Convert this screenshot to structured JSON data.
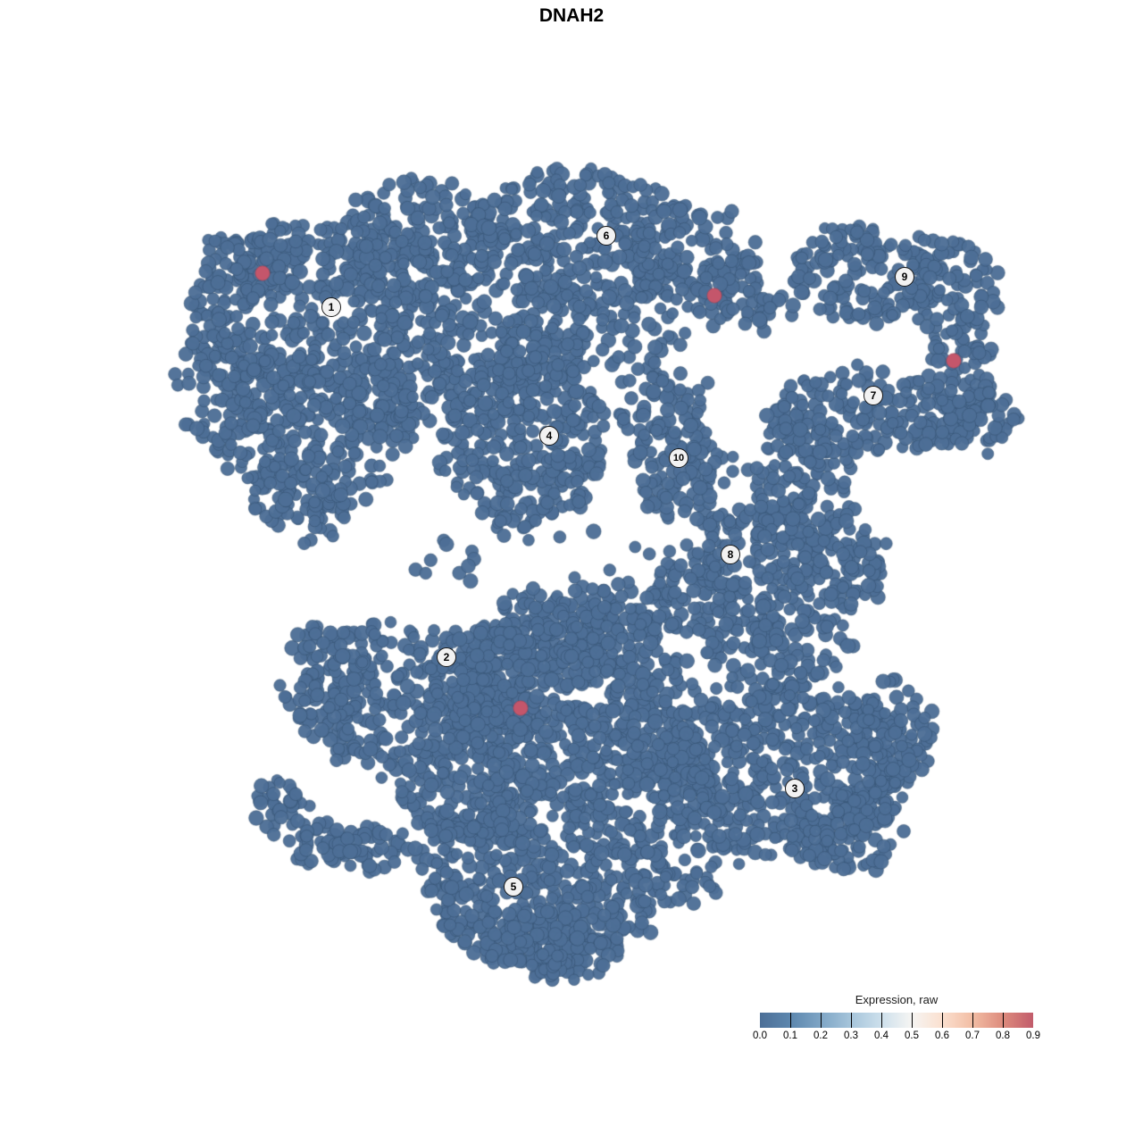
{
  "chart_data": {
    "type": "scatter",
    "title": "DNAH2",
    "plot_kind": "umap-embedding",
    "point_color": "#4d6e96",
    "point_stroke": "#33506f",
    "highlight_color": "#c4566b",
    "highlight_stroke": "#96404f",
    "xlim": [
      0,
      1280
    ],
    "ylim": [
      0,
      1280
    ],
    "grid": false,
    "cluster_labels": [
      {
        "id": "1",
        "x": 371,
        "y": 344
      },
      {
        "id": "2",
        "x": 500,
        "y": 736
      },
      {
        "id": "3",
        "x": 890,
        "y": 883
      },
      {
        "id": "4",
        "x": 615,
        "y": 488
      },
      {
        "id": "5",
        "x": 575,
        "y": 993
      },
      {
        "id": "6",
        "x": 679,
        "y": 264
      },
      {
        "id": "7",
        "x": 978,
        "y": 443
      },
      {
        "id": "8",
        "x": 818,
        "y": 621
      },
      {
        "id": "9",
        "x": 1013,
        "y": 310
      },
      {
        "id": "10",
        "x": 760,
        "y": 513
      }
    ],
    "highlighted_points": [
      {
        "x": 294,
        "y": 306,
        "value": 0.9
      },
      {
        "x": 800,
        "y": 331,
        "value": 0.9
      },
      {
        "x": 1068,
        "y": 404,
        "value": 0.9
      },
      {
        "x": 583,
        "y": 793,
        "value": 0.9
      }
    ],
    "density_blobs": [
      [
        375,
        360,
        170,
        120,
        520
      ],
      [
        345,
        480,
        120,
        90,
        240
      ],
      [
        335,
        555,
        60,
        45,
        80
      ],
      [
        240,
        420,
        45,
        80,
        55
      ],
      [
        275,
        300,
        62,
        40,
        70
      ],
      [
        470,
        270,
        90,
        70,
        170
      ],
      [
        640,
        265,
        120,
        78,
        270
      ],
      [
        770,
        280,
        70,
        50,
        110
      ],
      [
        840,
        330,
        60,
        40,
        65
      ],
      [
        670,
        360,
        110,
        50,
        120
      ],
      [
        585,
        495,
        95,
        95,
        310
      ],
      [
        600,
        402,
        60,
        42,
        80
      ],
      [
        480,
        420,
        60,
        70,
        65
      ],
      [
        762,
        525,
        55,
        60,
        110
      ],
      [
        730,
        448,
        58,
        38,
        55
      ],
      [
        980,
        460,
        122,
        46,
        190
      ],
      [
        970,
        305,
        82,
        55,
        150
      ],
      [
        1070,
        330,
        45,
        60,
        75
      ],
      [
        1080,
        395,
        30,
        42,
        38
      ],
      [
        1095,
        470,
        42,
        36,
        60
      ],
      [
        900,
        540,
        60,
        72,
        130
      ],
      [
        850,
        620,
        80,
        55,
        150
      ],
      [
        950,
        640,
        50,
        45,
        75
      ],
      [
        600,
        632,
        170,
        42,
        20
      ],
      [
        445,
        780,
        110,
        85,
        270
      ],
      [
        362,
        760,
        50,
        62,
        80
      ],
      [
        310,
        903,
        26,
        30,
        35
      ],
      [
        358,
        945,
        32,
        25,
        40
      ],
      [
        420,
        950,
        50,
        25,
        45
      ],
      [
        650,
        790,
        130,
        110,
        560
      ],
      [
        545,
        762,
        62,
        62,
        150
      ],
      [
        640,
        700,
        100,
        50,
        140
      ],
      [
        780,
        670,
        60,
        42,
        85
      ],
      [
        880,
        860,
        140,
        100,
        470
      ],
      [
        1000,
        820,
        50,
        60,
        85
      ],
      [
        950,
        930,
        60,
        50,
        95
      ],
      [
        870,
        722,
        80,
        45,
        120
      ],
      [
        610,
        980,
        140,
        100,
        520
      ],
      [
        620,
        1058,
        80,
        40,
        110
      ],
      [
        520,
        880,
        70,
        60,
        150
      ],
      [
        770,
        950,
        62,
        70,
        75
      ],
      [
        760,
        870,
        42,
        52,
        50
      ]
    ],
    "legend": {
      "title": "Expression, raw",
      "tick_labels": [
        "0.0",
        "0.1",
        "0.2",
        "0.3",
        "0.4",
        "0.5",
        "0.6",
        "0.7",
        "0.8",
        "0.9"
      ],
      "gradient_stops": [
        "#4c6f97",
        "#5d87ae",
        "#7ea5c5",
        "#a6c5db",
        "#cde0ec",
        "#f6f5f3",
        "#fbe0cf",
        "#f2bda4",
        "#dd8b7d",
        "#c25c6b"
      ]
    }
  }
}
